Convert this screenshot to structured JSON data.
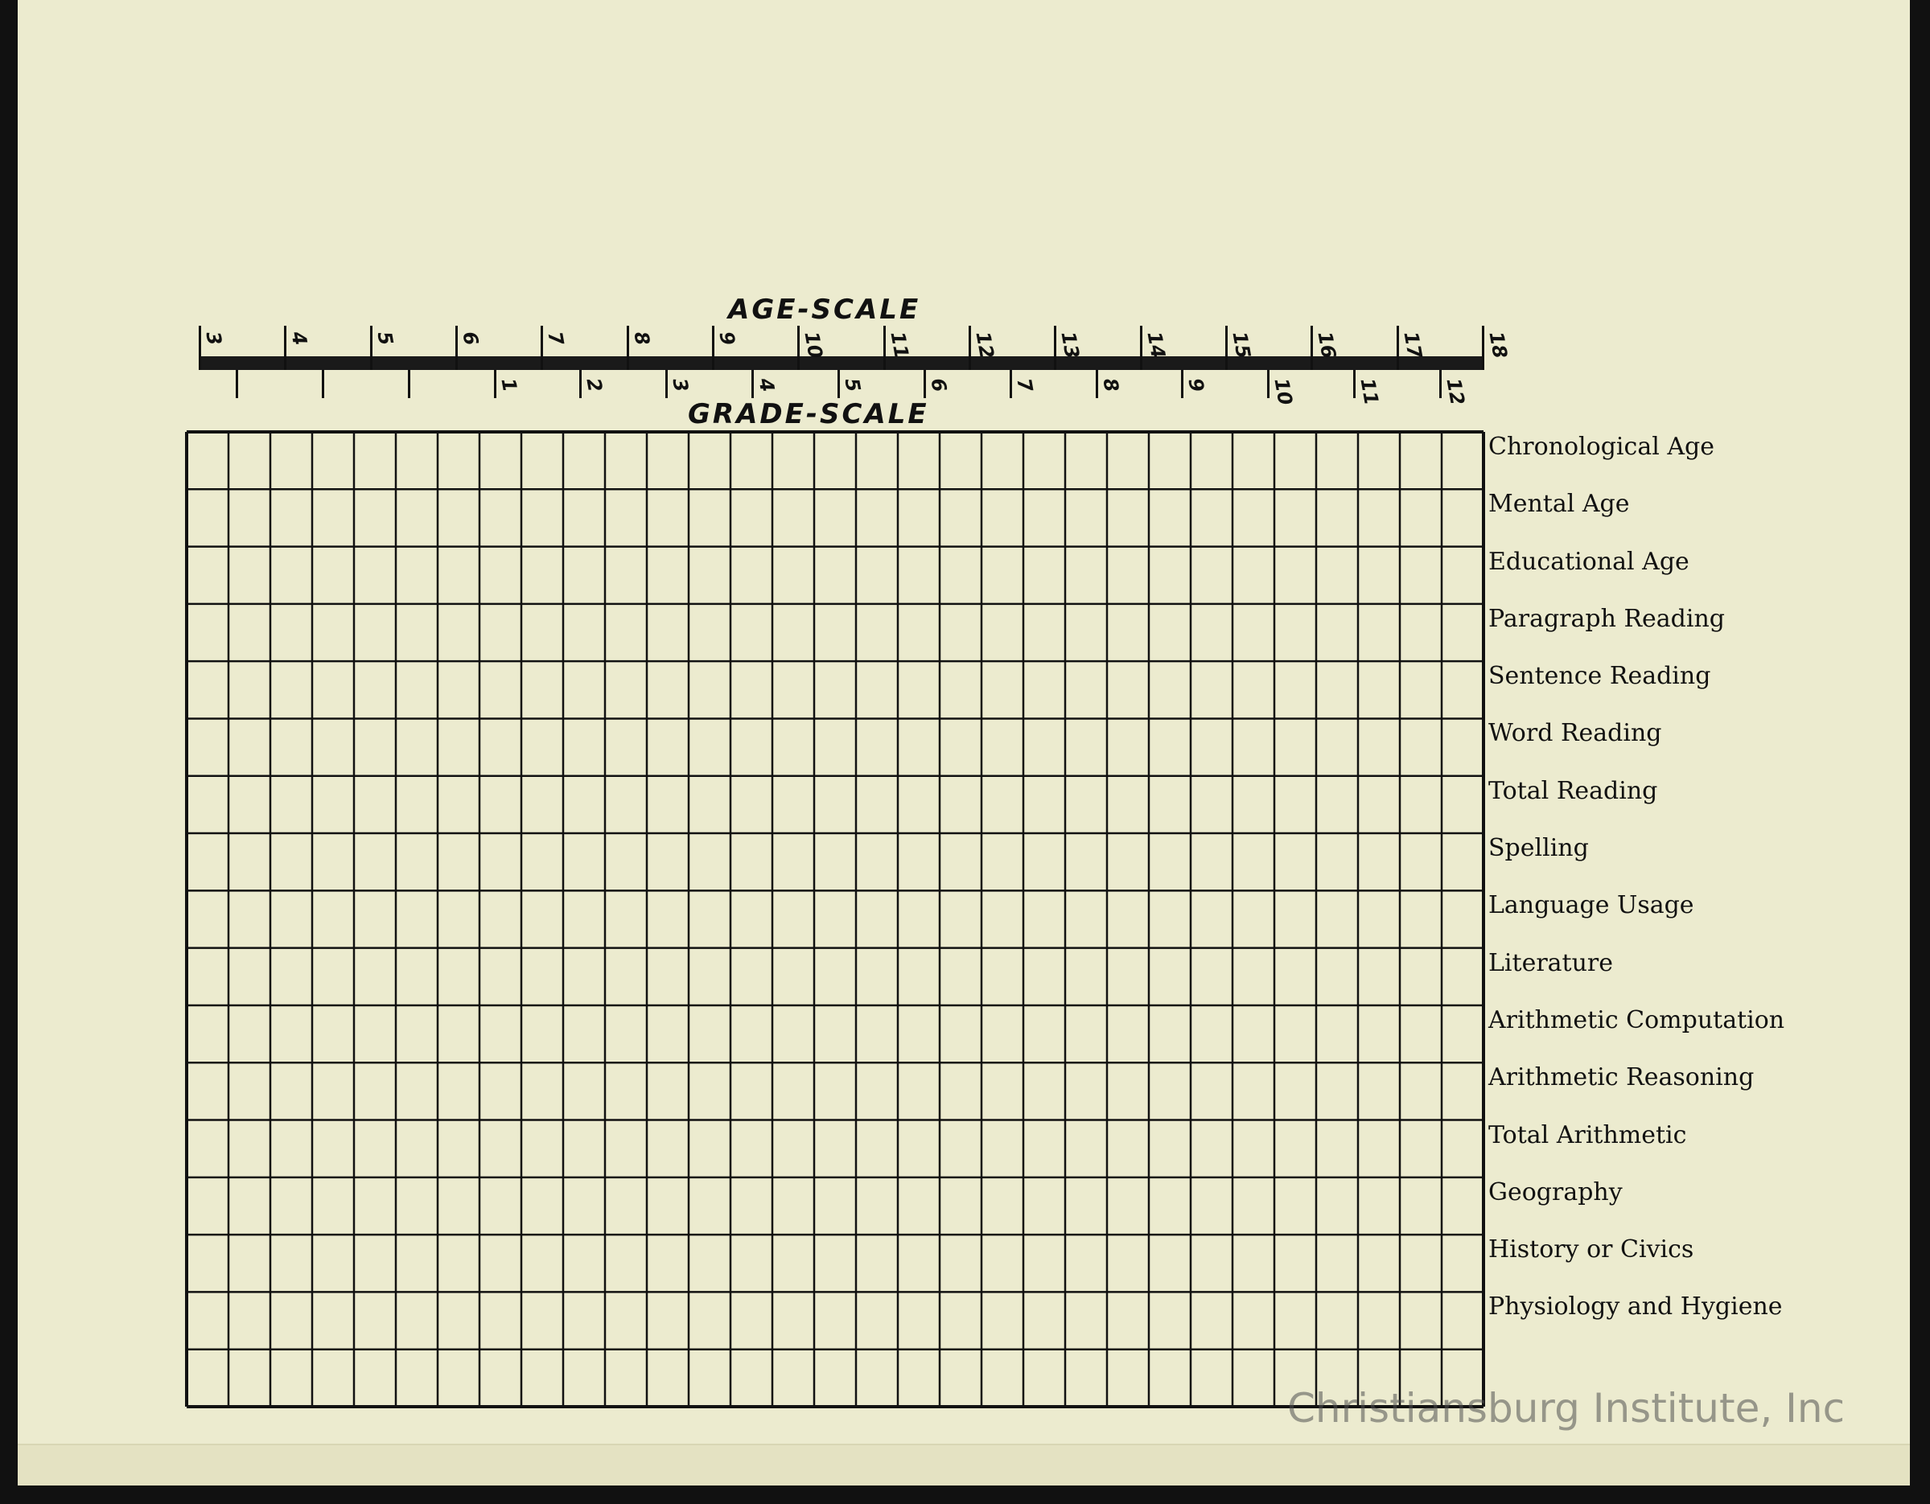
{
  "age_scale": {
    "title": "AGE-SCALE",
    "ticks": [
      "3",
      "4",
      "5",
      "6",
      "7",
      "8",
      "9",
      "10",
      "11",
      "12",
      "13",
      "14",
      "15",
      "16",
      "17",
      "18"
    ]
  },
  "grade_scale": {
    "title": "GRADE-SCALE",
    "ticks": [
      "",
      "",
      "",
      "1",
      "2",
      "3",
      "4",
      "5",
      "6",
      "7",
      "8",
      "9",
      "10",
      "11",
      "12"
    ]
  },
  "rows": [
    "Chronological Age",
    "Mental Age",
    "Educational Age",
    "Paragraph Reading",
    "Sentence Reading",
    "Word Reading",
    "Total Reading",
    "Spelling",
    "Language Usage",
    "Literature",
    "Arithmetic Computation",
    "Arithmetic Reasoning",
    "Total Arithmetic",
    "Geography",
    "History or Civics",
    "Physiology and Hygiene"
  ],
  "watermark": "Christiansburg Institute, Inc",
  "colors": {
    "paper": "#ecebcf",
    "ink": "#111111"
  }
}
